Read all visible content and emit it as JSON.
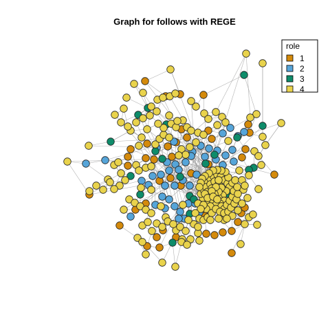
{
  "title": "Graph for follows with REGE",
  "legend": {
    "title": "role",
    "items": [
      {
        "label": "1",
        "color": "#D48A0B"
      },
      {
        "label": "2",
        "color": "#56A5D9"
      },
      {
        "label": "3",
        "color": "#0E8C6A"
      },
      {
        "label": "4",
        "color": "#E9D34C"
      }
    ]
  },
  "node_counts_by_role": {
    "1": 45,
    "2": 45,
    "3": 22,
    "4": 188
  }
}
